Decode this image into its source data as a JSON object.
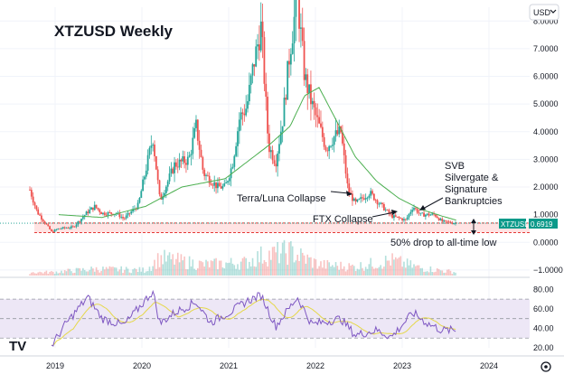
{
  "title": "XTZUSD Weekly",
  "currency_selector": {
    "label": "USD",
    "icon": "chevron-down-icon"
  },
  "price_tag": {
    "symbol": "XTZUSD",
    "value": "0.6919",
    "color": "#0b9a8a"
  },
  "logo_text": "TV",
  "settings_icon": "gear-icon",
  "annotations": {
    "terra": "Terra/Luna Collapse",
    "ftx": "FTX Collapse",
    "svb": [
      "SVB",
      "Silvergate &",
      "Signature",
      "Bankruptcies"
    ],
    "drop": "50% drop to all-time low"
  },
  "colors": {
    "up": "#26a69a",
    "down": "#ef5350",
    "ma": "#4caf50",
    "rsi": "#7e57c2",
    "rsi_ma": "#e5d84a",
    "support_zone": "#ffe3e3",
    "support_line": "#e53935",
    "rsi_band": "#ede7f6"
  },
  "chart_data": {
    "type": "candlestick",
    "title": "XTZUSD Weekly",
    "x_ticks": [
      "2019",
      "2020",
      "2021",
      "2022",
      "2023",
      "2024"
    ],
    "price_axis": {
      "ticks": [
        8.0,
        7.0,
        6.0,
        5.0,
        4.0,
        3.0,
        2.0,
        1.0,
        0.0,
        -1.0
      ],
      "tick_labels": [
        "8.0000",
        "7.0000",
        "6.0000",
        "5.0000",
        "4.0000",
        "3.0000",
        "2.0000",
        "1.0000",
        "0.0000",
        "−1.0000"
      ],
      "range": [
        -1.2,
        8.5
      ]
    },
    "rsi_axis": {
      "ticks": [
        80,
        60,
        40,
        20
      ],
      "tick_labels": [
        "80.00",
        "60.00",
        "40.00",
        "20.00"
      ],
      "range": [
        20,
        85
      ],
      "band": [
        30,
        70
      ]
    },
    "support_zone": [
      0.35,
      0.7
    ],
    "last_price": 0.6919,
    "price_anchors": [
      [
        "2018-09",
        1.9
      ],
      [
        "2018-10",
        1.1
      ],
      [
        "2018-12",
        0.38
      ],
      [
        "2019-01",
        0.5
      ],
      [
        "2019-03",
        0.55
      ],
      [
        "2019-05",
        1.1
      ],
      [
        "2019-06",
        1.3
      ],
      [
        "2019-07",
        1.05
      ],
      [
        "2019-09",
        1.05
      ],
      [
        "2019-10",
        0.85
      ],
      [
        "2019-12",
        1.35
      ],
      [
        "2020-02",
        3.8
      ],
      [
        "2020-03",
        1.5
      ],
      [
        "2020-05",
        2.8
      ],
      [
        "2020-07",
        3.0
      ],
      [
        "2020-08",
        4.2
      ],
      [
        "2020-09",
        2.5
      ],
      [
        "2020-11",
        2.0
      ],
      [
        "2020-12",
        2.0
      ],
      [
        "2021-01",
        2.8
      ],
      [
        "2021-02",
        4.5
      ],
      [
        "2021-03",
        4.9
      ],
      [
        "2021-04",
        6.5
      ],
      [
        "2021-05",
        7.8
      ],
      [
        "2021-06",
        3.5
      ],
      [
        "2021-07",
        2.9
      ],
      [
        "2021-08",
        4.5
      ],
      [
        "2021-09",
        7.0
      ],
      [
        "2021-10",
        8.9
      ],
      [
        "2021-11",
        6.0
      ],
      [
        "2021-12",
        5.0
      ],
      [
        "2022-01",
        4.2
      ],
      [
        "2022-02",
        3.4
      ],
      [
        "2022-03",
        3.8
      ],
      [
        "2022-04",
        4.0
      ],
      [
        "2022-05",
        1.9
      ],
      [
        "2022-06",
        1.4
      ],
      [
        "2022-08",
        1.8
      ],
      [
        "2022-09",
        1.5
      ],
      [
        "2022-11",
        0.95
      ],
      [
        "2023-01",
        0.8
      ],
      [
        "2023-02",
        1.3
      ],
      [
        "2023-03",
        1.0
      ],
      [
        "2023-05",
        1.0
      ],
      [
        "2023-06",
        0.75
      ],
      [
        "2023-08",
        0.69
      ]
    ],
    "ma_anchors": [
      [
        "2019-01",
        1.0
      ],
      [
        "2019-07",
        0.9
      ],
      [
        "2020-01",
        1.3
      ],
      [
        "2020-06",
        2.0
      ],
      [
        "2020-12",
        2.3
      ],
      [
        "2021-03",
        2.9
      ],
      [
        "2021-06",
        3.5
      ],
      [
        "2021-09",
        4.2
      ],
      [
        "2021-11",
        5.3
      ],
      [
        "2022-01",
        5.6
      ],
      [
        "2022-03",
        4.6
      ],
      [
        "2022-06",
        3.1
      ],
      [
        "2022-09",
        2.2
      ],
      [
        "2022-12",
        1.6
      ],
      [
        "2023-03",
        1.2
      ],
      [
        "2023-06",
        0.95
      ],
      [
        "2023-08",
        0.8
      ]
    ],
    "rsi_anchors": [
      [
        "2018-12",
        22
      ],
      [
        "2019-02",
        45
      ],
      [
        "2019-05",
        72
      ],
      [
        "2019-07",
        50
      ],
      [
        "2019-10",
        43
      ],
      [
        "2020-02",
        78
      ],
      [
        "2020-03",
        45
      ],
      [
        "2020-05",
        56
      ],
      [
        "2020-08",
        67
      ],
      [
        "2020-10",
        46
      ],
      [
        "2021-01",
        58
      ],
      [
        "2021-03",
        68
      ],
      [
        "2021-05",
        74
      ],
      [
        "2021-07",
        42
      ],
      [
        "2021-10",
        72
      ],
      [
        "2021-12",
        44
      ],
      [
        "2022-04",
        50
      ],
      [
        "2022-06",
        33
      ],
      [
        "2022-09",
        38
      ],
      [
        "2022-11",
        31
      ],
      [
        "2023-02",
        56
      ],
      [
        "2023-04",
        45
      ],
      [
        "2023-06",
        38
      ],
      [
        "2023-08",
        38
      ]
    ],
    "volume_envelope": [
      [
        "2018-12",
        0.15
      ],
      [
        "2019-06",
        0.3
      ],
      [
        "2020-01",
        0.25
      ],
      [
        "2020-03",
        0.8
      ],
      [
        "2020-09",
        0.5
      ],
      [
        "2021-03",
        0.6
      ],
      [
        "2021-05",
        0.9
      ],
      [
        "2021-09",
        1.1
      ],
      [
        "2022-01",
        0.5
      ],
      [
        "2022-06",
        0.4
      ],
      [
        "2022-11",
        0.7
      ],
      [
        "2023-03",
        0.35
      ],
      [
        "2023-08",
        0.15
      ]
    ]
  }
}
